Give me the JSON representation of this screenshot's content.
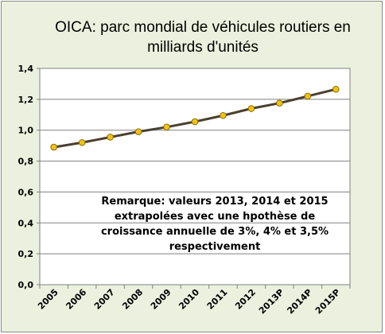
{
  "chart_data": {
    "type": "line",
    "title": "OICA: parc mondial de véhicules routiers en milliards d'unités",
    "categories": [
      "2005",
      "2006",
      "2007",
      "2008",
      "2009",
      "2010",
      "2011",
      "2012",
      "2013P",
      "2014P",
      "2015P"
    ],
    "values": [
      0.89,
      0.92,
      0.955,
      0.99,
      1.02,
      1.055,
      1.095,
      1.14,
      1.175,
      1.22,
      1.265
    ],
    "ylim": [
      0,
      1.4
    ],
    "yticks": [
      "0,0",
      "0,2",
      "0,4",
      "0,6",
      "0,8",
      "1,0",
      "1,2",
      "1,4"
    ],
    "grid": "horizontal",
    "annotation": "Remarque: valeurs 2013, 2014 et 2015 extrapolées avec une hpothèse de croissance annuelle de 3%, 4% et 3,5% respectivement",
    "colors": {
      "line": "#4a4030",
      "marker_fill": "#f2c316",
      "marker_stroke": "#8a6d00",
      "plot_bg": "#ffffff",
      "frame_bg": "#ebf1de"
    }
  }
}
